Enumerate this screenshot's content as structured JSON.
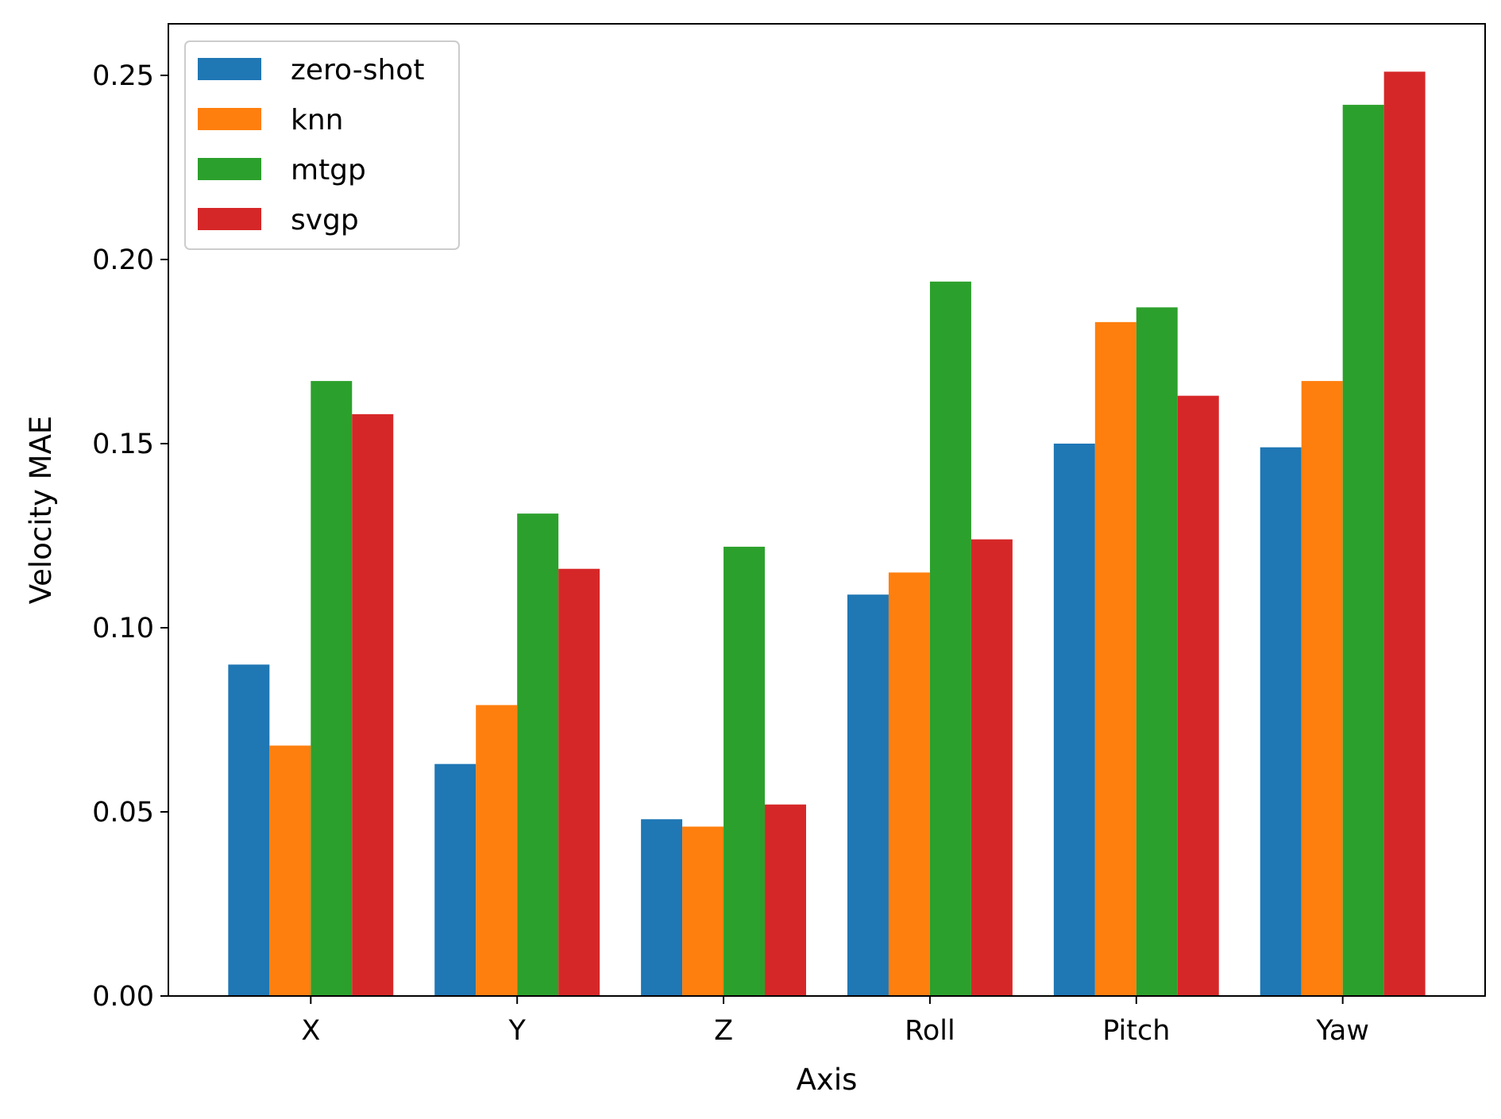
{
  "chart_data": {
    "type": "bar",
    "title": "",
    "xlabel": "Axis",
    "ylabel": "Velocity MAE",
    "categories": [
      "X",
      "Y",
      "Z",
      "Roll",
      "Pitch",
      "Yaw"
    ],
    "ylim": [
      0,
      0.264
    ],
    "yticks": [
      0.0,
      0.05,
      0.1,
      0.15,
      0.2,
      0.25
    ],
    "ytick_labels": [
      "0.00",
      "0.05",
      "0.10",
      "0.15",
      "0.20",
      "0.25"
    ],
    "grid": false,
    "legend_position": "top-left",
    "series": [
      {
        "name": "zero-shot",
        "color": "#1f77b4",
        "values": [
          0.09,
          0.063,
          0.048,
          0.109,
          0.15,
          0.149
        ]
      },
      {
        "name": "knn",
        "color": "#ff7f0e",
        "values": [
          0.068,
          0.079,
          0.046,
          0.115,
          0.183,
          0.167
        ]
      },
      {
        "name": "mtgp",
        "color": "#2ca02c",
        "values": [
          0.167,
          0.131,
          0.122,
          0.194,
          0.187,
          0.242
        ]
      },
      {
        "name": "svgp",
        "color": "#d62728",
        "values": [
          0.158,
          0.116,
          0.052,
          0.124,
          0.163,
          0.251
        ]
      }
    ]
  }
}
